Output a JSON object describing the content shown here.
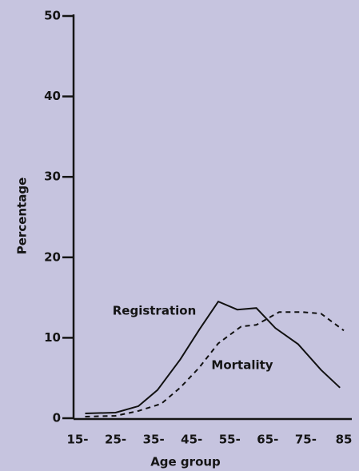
{
  "chart_data": {
    "type": "line",
    "xlabel": "Age group",
    "ylabel": "Percentage",
    "xlim": [
      15,
      85
    ],
    "xticks": [
      {
        "value": 15,
        "label": "15-"
      },
      {
        "value": 25,
        "label": "25-"
      },
      {
        "value": 35,
        "label": "35-"
      },
      {
        "value": 45,
        "label": "45-"
      },
      {
        "value": 55,
        "label": "55-"
      },
      {
        "value": 65,
        "label": "65-"
      },
      {
        "value": 75,
        "label": "75-"
      },
      85
    ],
    "ylim": [
      0,
      50
    ],
    "yticks": [
      0,
      10,
      20,
      30,
      40,
      50
    ],
    "series": [
      {
        "name": "Registration",
        "color": "#111111",
        "dash": "solid",
        "x": [
          17,
          25,
          31,
          36,
          42,
          47,
          52,
          57,
          62,
          67,
          73,
          79,
          84
        ],
        "values": [
          0.6,
          0.7,
          1.5,
          3.5,
          7.3,
          11,
          14.5,
          13.5,
          13.7,
          11.2,
          9.2,
          6,
          3.8
        ]
      },
      {
        "name": "Mortality",
        "color": "#111111",
        "dash": "dashed",
        "x": [
          17,
          25,
          31,
          37,
          42,
          47,
          52,
          58,
          62,
          68,
          74,
          79,
          85
        ],
        "values": [
          0.2,
          0.3,
          0.9,
          1.8,
          3.8,
          6.3,
          9.3,
          11.4,
          11.6,
          13.2,
          13.2,
          13,
          10.9
        ]
      }
    ]
  }
}
